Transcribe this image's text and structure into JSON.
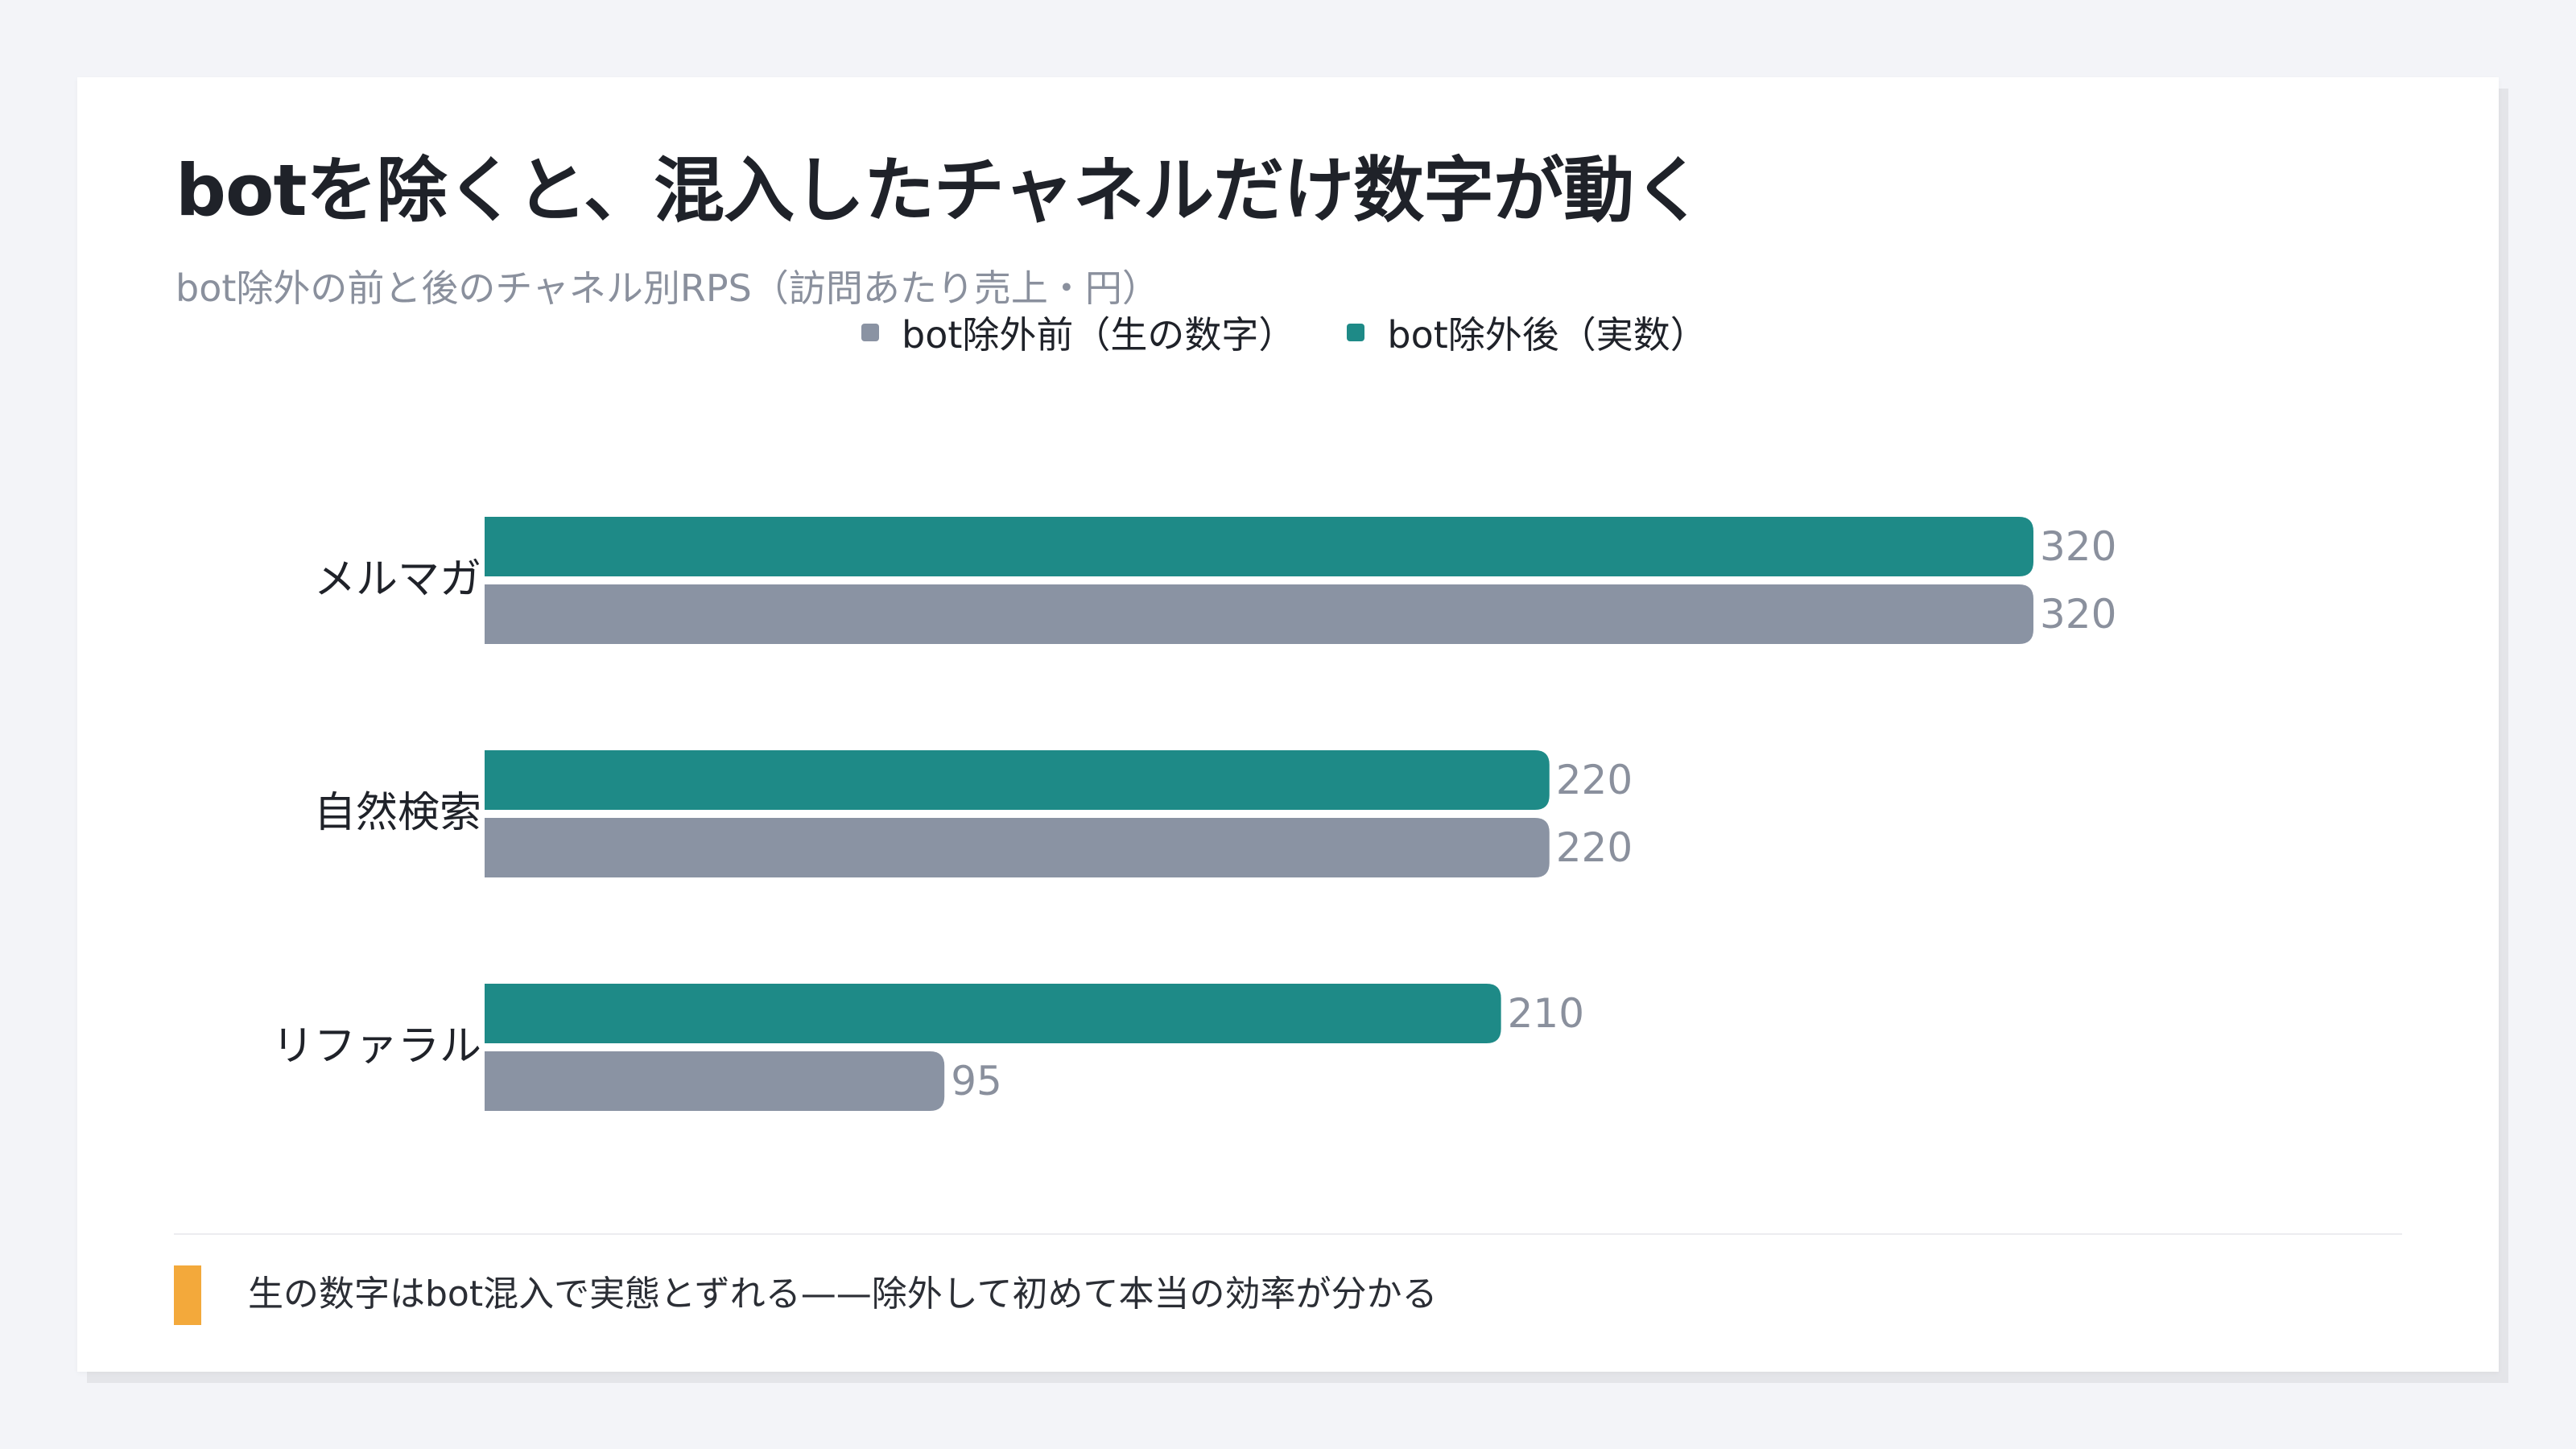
{
  "title": "botを除くと、混入したチャネルだけ数字が動く",
  "subtitle": "bot除外の前と後のチャネル別RPS（訪問あたり売上・円）",
  "legend": [
    {
      "label": "bot除外前（生の数字）",
      "color": "#8a93a3"
    },
    {
      "label": "bot除外後（実数）",
      "color": "#1e8a87"
    }
  ],
  "note": {
    "text": "生の数字はbot混入で実態とずれる——除外して初めて本当の効率が分かる",
    "accent_color": "#f3a93b"
  },
  "chart_data": {
    "type": "bar",
    "orientation": "horizontal",
    "categories": [
      "メルマガ",
      "自然検索",
      "リファラル"
    ],
    "series": [
      {
        "name": "bot除外後（実数）",
        "values": [
          320,
          220,
          210
        ],
        "color": "#1e8a87"
      },
      {
        "name": "bot除外前（生の数字）",
        "values": [
          320,
          220,
          95
        ],
        "color": "#8a93a3"
      }
    ],
    "xlim": [
      0,
      320
    ],
    "grid": false,
    "legend_position": "top-center",
    "data_labels": true
  }
}
